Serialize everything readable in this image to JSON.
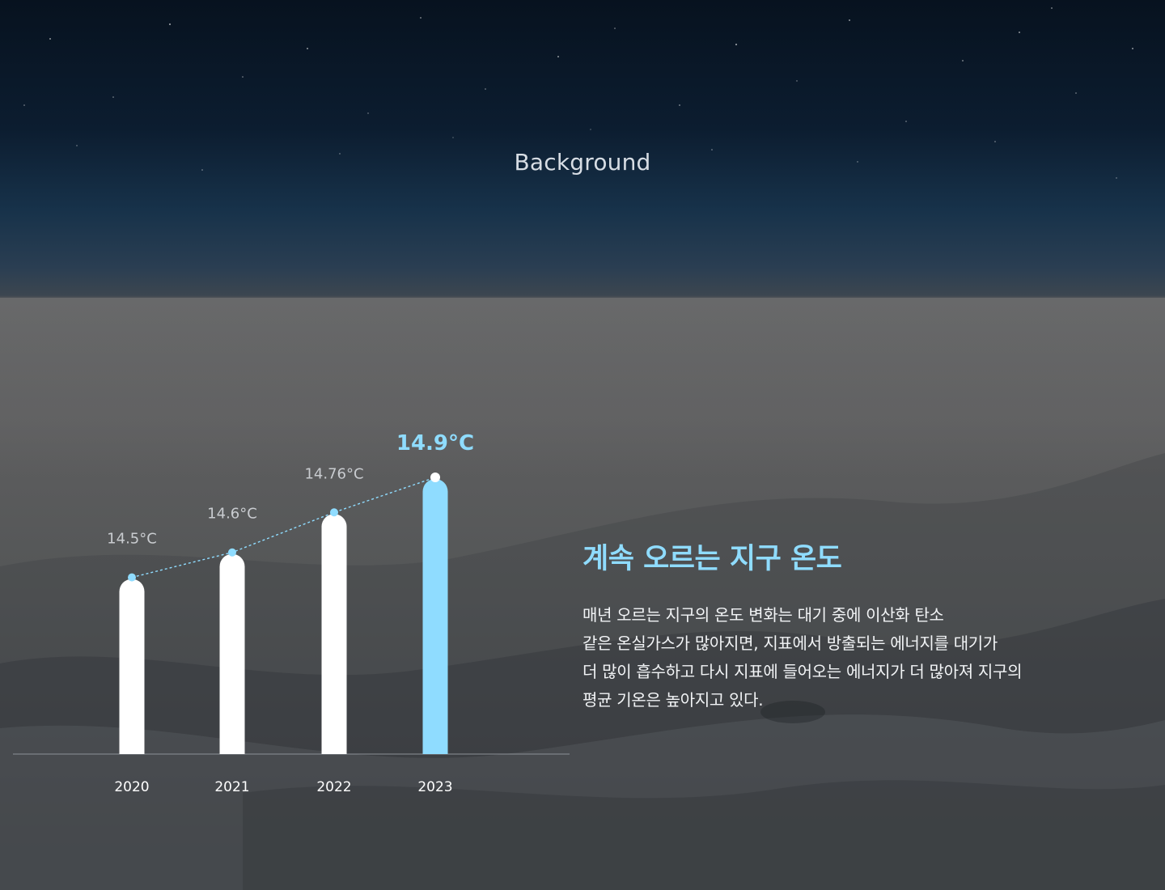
{
  "background": {
    "label": "Background",
    "colors": {
      "sky": "#07121f",
      "horizon": "#17324a",
      "ground": "#5a5a5b"
    }
  },
  "chart_data": {
    "type": "bar",
    "categories": [
      "2020",
      "2021",
      "2022",
      "2023"
    ],
    "values": [
      14.5,
      14.6,
      14.76,
      14.9
    ],
    "value_labels": [
      "14.5°C",
      "14.6°C",
      "14.76°C",
      "14.9°C"
    ],
    "highlight_index": 3,
    "colors": {
      "bar": "#ffffff",
      "highlight": "#8fdcff",
      "label": "#c9ccd0",
      "trend": "#8fdcff",
      "axis": "#8d9297"
    },
    "trend_line": true,
    "ylim": [
      13.8,
      15.0
    ]
  },
  "info": {
    "title": "계속 오르는 지구 온도",
    "body": "매년 오르는 지구의 온도 변화는 대기 중에 이산화 탄소\n같은 온실가스가 많아지면, 지표에서 방출되는 에너지를 대기가\n더 많이 흡수하고 다시 지표에 들어오는 에너지가 더 많아져 지구의\n평균 기온은 높아지고 있다."
  }
}
